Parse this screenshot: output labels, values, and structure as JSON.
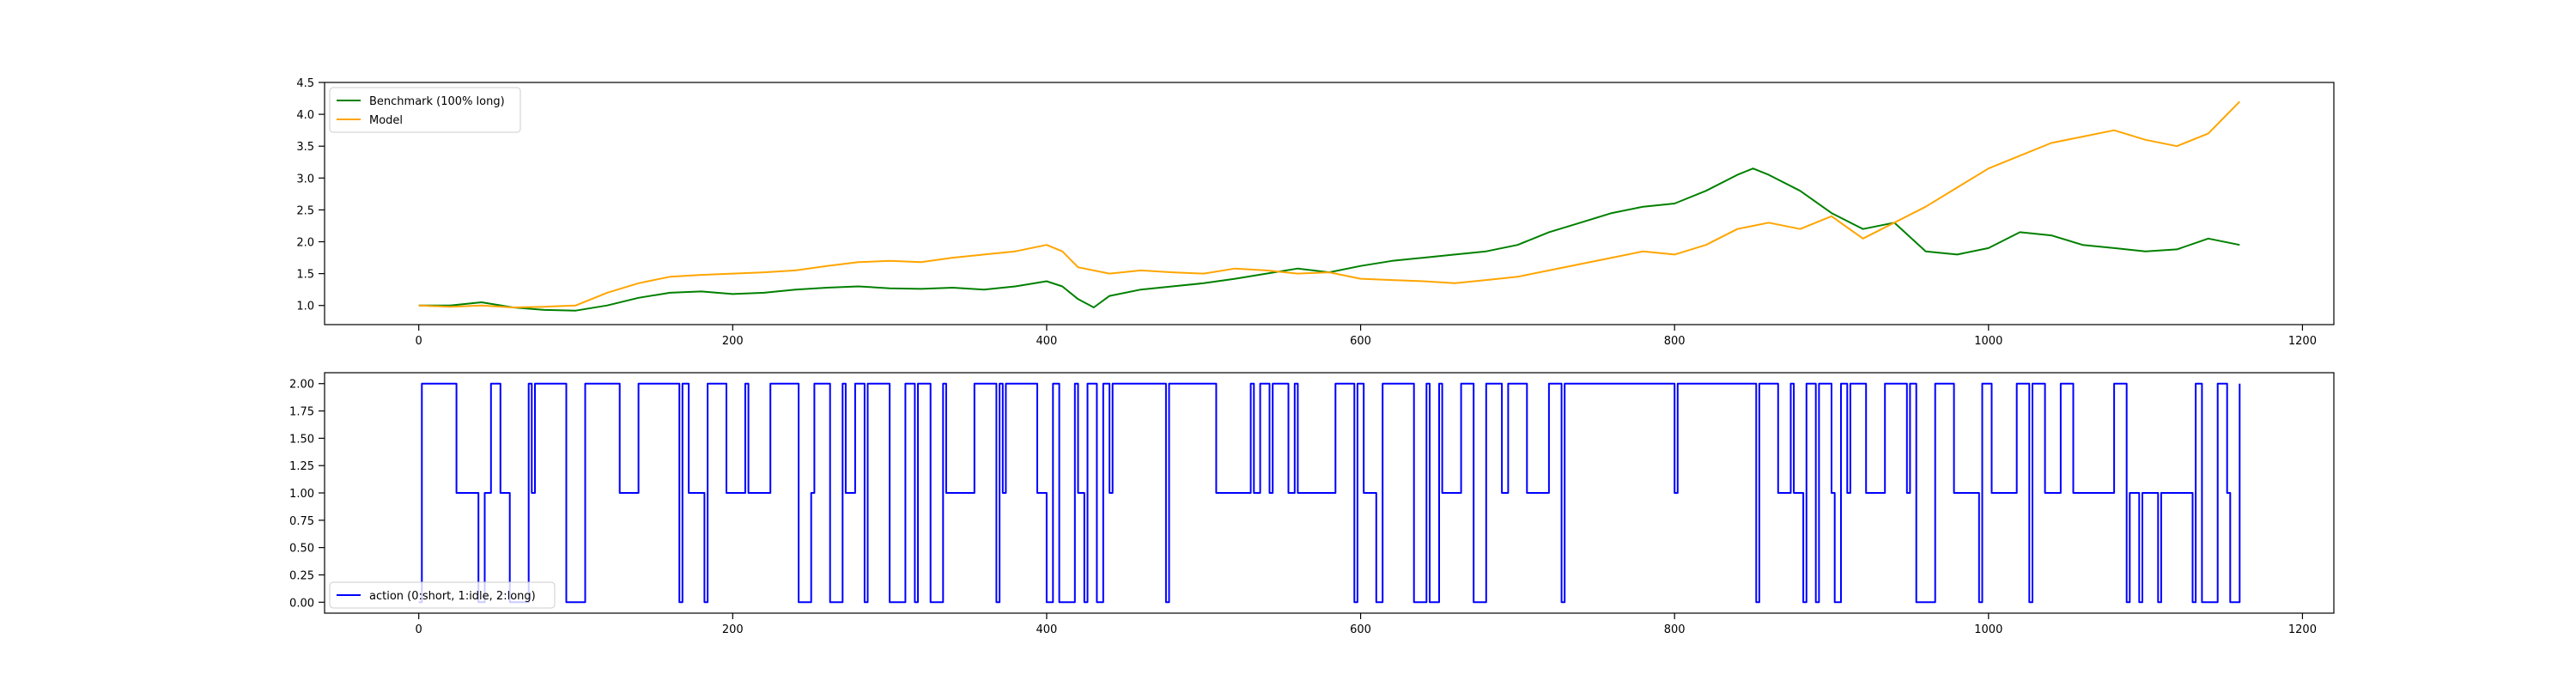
{
  "chart_data": [
    {
      "type": "line",
      "title": "",
      "xlabel": "",
      "ylabel": "",
      "xlim": [
        -60,
        1220
      ],
      "ylim": [
        0.7,
        4.5
      ],
      "xticks": [
        0,
        200,
        400,
        600,
        800,
        1000,
        1200
      ],
      "yticks": [
        1.0,
        1.5,
        2.0,
        2.5,
        3.0,
        3.5,
        4.0,
        4.5
      ],
      "ytick_labels": [
        "1.0",
        "1.5",
        "2.0",
        "2.5",
        "3.0",
        "3.5",
        "4.0",
        "4.5"
      ],
      "grid": false,
      "legend_position": "upper left",
      "series": [
        {
          "name": "Benchmark (100% long)",
          "color": "#008000",
          "x": [
            0,
            20,
            40,
            60,
            80,
            100,
            120,
            140,
            160,
            180,
            200,
            220,
            240,
            260,
            280,
            300,
            320,
            340,
            360,
            380,
            400,
            410,
            420,
            430,
            440,
            460,
            480,
            500,
            520,
            540,
            560,
            580,
            600,
            620,
            640,
            660,
            680,
            700,
            720,
            740,
            760,
            780,
            800,
            820,
            840,
            850,
            860,
            880,
            900,
            920,
            940,
            960,
            980,
            1000,
            1020,
            1040,
            1060,
            1080,
            1100,
            1120,
            1140,
            1160
          ],
          "y": [
            1.0,
            1.0,
            1.05,
            0.97,
            0.93,
            0.92,
            1.0,
            1.12,
            1.2,
            1.22,
            1.18,
            1.2,
            1.25,
            1.28,
            1.3,
            1.27,
            1.26,
            1.28,
            1.25,
            1.3,
            1.38,
            1.3,
            1.1,
            0.97,
            1.15,
            1.25,
            1.3,
            1.35,
            1.42,
            1.5,
            1.58,
            1.52,
            1.62,
            1.7,
            1.75,
            1.8,
            1.85,
            1.95,
            2.15,
            2.3,
            2.45,
            2.55,
            2.6,
            2.8,
            3.05,
            3.15,
            3.05,
            2.8,
            2.45,
            2.2,
            2.3,
            1.85,
            1.8,
            1.9,
            2.15,
            2.1,
            1.95,
            1.9,
            1.85,
            1.88,
            2.05,
            1.95
          ]
        },
        {
          "name": "Model",
          "color": "#FFA500",
          "x": [
            0,
            20,
            40,
            60,
            80,
            100,
            120,
            140,
            160,
            180,
            200,
            220,
            240,
            260,
            280,
            300,
            320,
            340,
            360,
            380,
            400,
            410,
            420,
            440,
            460,
            480,
            500,
            520,
            540,
            560,
            580,
            600,
            620,
            640,
            660,
            680,
            700,
            720,
            740,
            760,
            780,
            800,
            820,
            840,
            860,
            880,
            900,
            920,
            940,
            960,
            980,
            1000,
            1020,
            1040,
            1060,
            1080,
            1100,
            1120,
            1140,
            1160
          ],
          "y": [
            1.0,
            0.98,
            1.0,
            0.97,
            0.98,
            1.0,
            1.2,
            1.35,
            1.45,
            1.48,
            1.5,
            1.52,
            1.55,
            1.62,
            1.68,
            1.7,
            1.68,
            1.75,
            1.8,
            1.85,
            1.95,
            1.85,
            1.6,
            1.5,
            1.55,
            1.52,
            1.5,
            1.58,
            1.55,
            1.5,
            1.52,
            1.42,
            1.4,
            1.38,
            1.35,
            1.4,
            1.45,
            1.55,
            1.65,
            1.75,
            1.85,
            1.8,
            1.95,
            2.2,
            2.3,
            2.2,
            2.4,
            2.05,
            2.3,
            2.55,
            2.85,
            3.15,
            3.35,
            3.55,
            3.65,
            3.75,
            3.6,
            3.5,
            3.7,
            4.2
          ]
        }
      ]
    },
    {
      "type": "line",
      "title": "",
      "xlabel": "",
      "ylabel": "",
      "xlim": [
        -60,
        1220
      ],
      "ylim": [
        -0.1,
        2.1
      ],
      "xticks": [
        0,
        200,
        400,
        600,
        800,
        1000,
        1200
      ],
      "yticks": [
        0.0,
        0.25,
        0.5,
        0.75,
        1.0,
        1.25,
        1.5,
        1.75,
        2.0
      ],
      "ytick_labels": [
        "0.00",
        "0.25",
        "0.50",
        "0.75",
        "1.00",
        "1.25",
        "1.50",
        "1.75",
        "2.00"
      ],
      "grid": false,
      "legend_position": "lower left",
      "series": [
        {
          "name": "action (0:short, 1:idle, 2:long)",
          "color": "#0000FF",
          "step": true,
          "x": [
            0,
            2,
            24,
            36,
            38,
            42,
            46,
            52,
            58,
            70,
            72,
            74,
            94,
            106,
            128,
            140,
            166,
            168,
            172,
            182,
            184,
            196,
            208,
            210,
            224,
            242,
            250,
            252,
            262,
            270,
            272,
            278,
            284,
            286,
            300,
            310,
            316,
            318,
            326,
            334,
            336,
            354,
            368,
            370,
            372,
            374,
            394,
            400,
            404,
            408,
            418,
            420,
            424,
            426,
            432,
            436,
            440,
            442,
            476,
            478,
            508,
            530,
            532,
            536,
            542,
            544,
            554,
            558,
            560,
            584,
            596,
            598,
            602,
            610,
            614,
            634,
            642,
            644,
            650,
            652,
            664,
            672,
            680,
            690,
            694,
            706,
            720,
            728,
            730,
            800,
            802,
            852,
            854,
            866,
            874,
            876,
            882,
            884,
            890,
            892,
            900,
            902,
            906,
            910,
            912,
            922,
            934,
            948,
            950,
            954,
            966,
            978,
            994,
            996,
            1002,
            1018,
            1026,
            1028,
            1036,
            1046,
            1054,
            1080,
            1088,
            1090,
            1096,
            1098,
            1108,
            1110,
            1130,
            1132,
            1136,
            1146,
            1152,
            1154,
            1160
          ],
          "y": [
            0,
            2,
            1,
            1,
            0,
            1,
            2,
            1,
            0,
            2,
            1,
            2,
            0,
            2,
            1,
            2,
            0,
            2,
            1,
            0,
            2,
            1,
            2,
            1,
            2,
            0,
            1,
            2,
            0,
            2,
            1,
            2,
            0,
            2,
            0,
            2,
            0,
            2,
            0,
            2,
            1,
            2,
            0,
            2,
            1,
            2,
            1,
            0,
            2,
            0,
            2,
            1,
            0,
            2,
            0,
            2,
            1,
            2,
            0,
            2,
            1,
            2,
            1,
            2,
            1,
            2,
            1,
            2,
            1,
            2,
            0,
            2,
            1,
            0,
            2,
            0,
            2,
            0,
            2,
            1,
            2,
            0,
            2,
            1,
            2,
            1,
            2,
            0,
            2,
            1,
            2,
            0,
            2,
            1,
            2,
            1,
            0,
            2,
            0,
            2,
            1,
            0,
            2,
            1,
            2,
            1,
            2,
            1,
            2,
            0,
            2,
            1,
            0,
            2,
            1,
            2,
            0,
            2,
            1,
            2,
            1,
            2,
            0,
            1,
            0,
            1,
            0,
            1,
            0,
            2,
            0,
            2,
            1,
            0,
            2
          ]
        }
      ]
    }
  ]
}
